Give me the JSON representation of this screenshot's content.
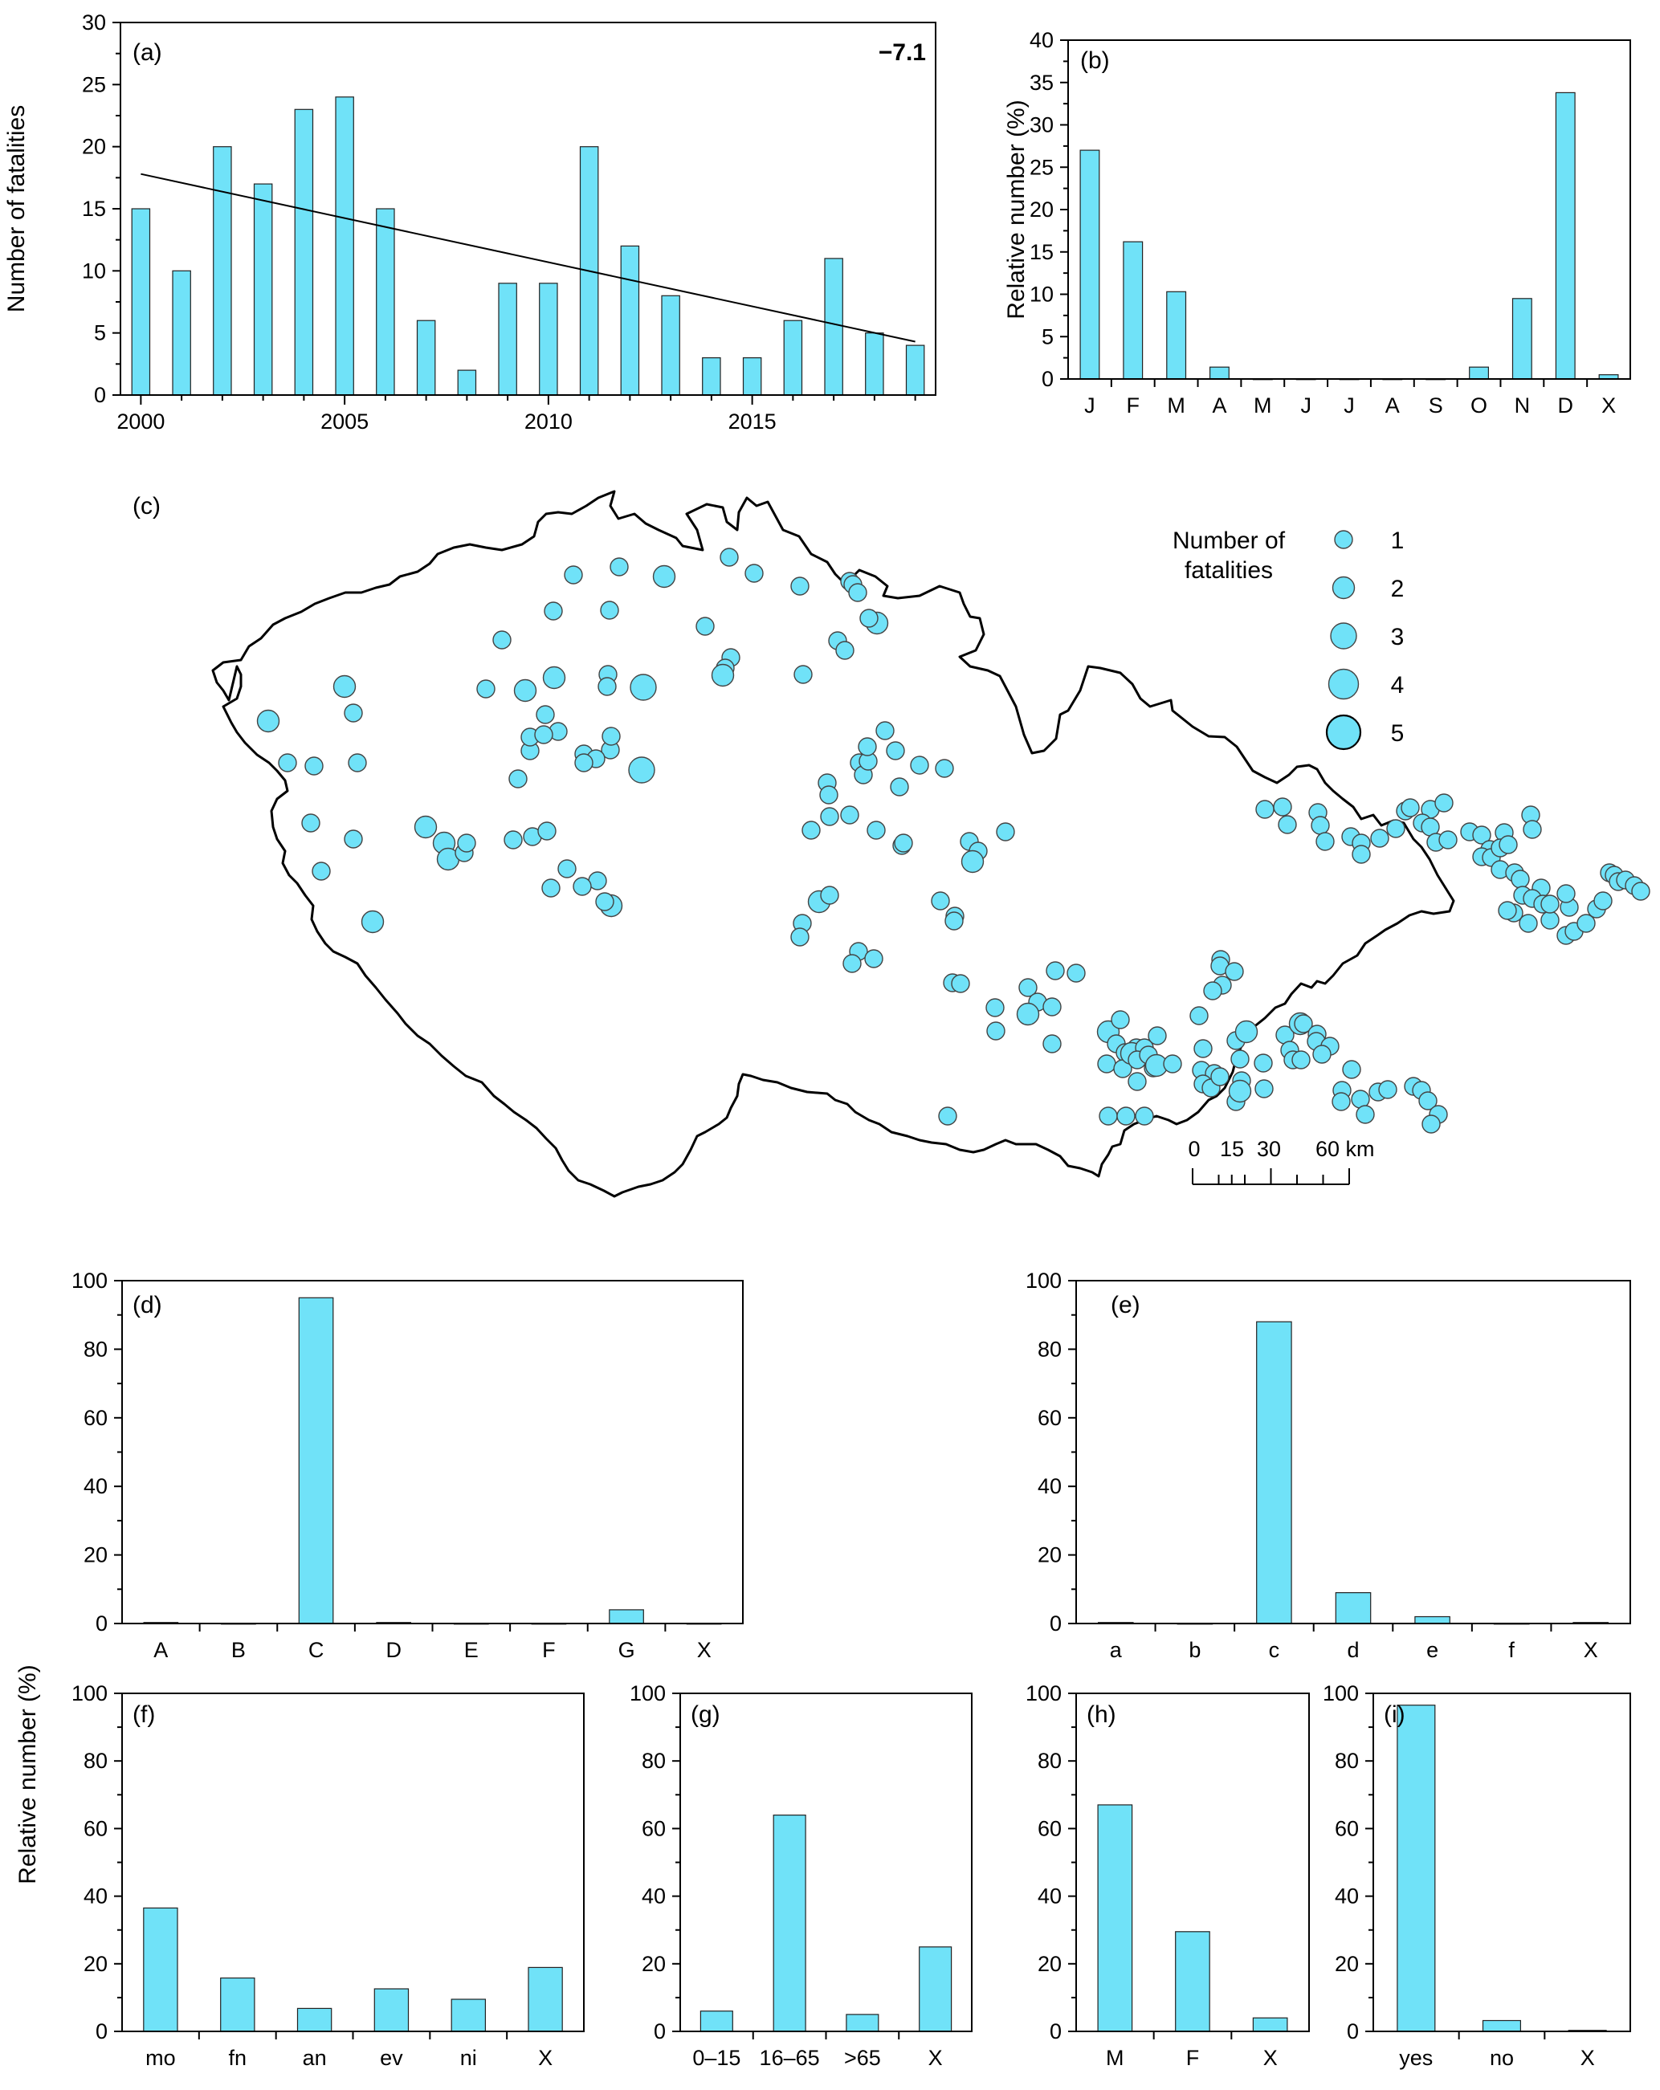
{
  "chart_data": [
    {
      "id": "a",
      "type": "bar",
      "panel_label": "(a)",
      "corner_value": "−7.1",
      "ylabel": "Number of fatalities",
      "xlabel": "",
      "x": [
        2000,
        2001,
        2002,
        2003,
        2004,
        2005,
        2006,
        2007,
        2008,
        2009,
        2010,
        2011,
        2012,
        2013,
        2014,
        2015,
        2016,
        2017,
        2018,
        2019
      ],
      "values": [
        15,
        10,
        20,
        17,
        23,
        24,
        15,
        6,
        2,
        9,
        9,
        20,
        12,
        8,
        3,
        3,
        6,
        11,
        5,
        4
      ],
      "xticks": [
        "2000",
        "2005",
        "2010",
        "2015"
      ],
      "yticks": [
        "0",
        "5",
        "10",
        "15",
        "20",
        "25",
        "30"
      ],
      "ylim": [
        0,
        30
      ],
      "trend": {
        "x": [
          2000,
          2019
        ],
        "y": [
          17.8,
          4.3
        ]
      }
    },
    {
      "id": "b",
      "type": "bar",
      "panel_label": "(b)",
      "ylabel": "Relative number (%)",
      "xlabel": "",
      "categories": [
        "J",
        "F",
        "M",
        "A",
        "M",
        "J",
        "J",
        "A",
        "S",
        "O",
        "N",
        "D",
        "X"
      ],
      "values": [
        27.0,
        16.2,
        10.3,
        1.4,
        0,
        0,
        0,
        0,
        0,
        1.4,
        9.5,
        33.8,
        0.5
      ],
      "yticks": [
        "0",
        "5",
        "10",
        "15",
        "20",
        "25",
        "30",
        "35",
        "40"
      ],
      "ylim": [
        0,
        40
      ]
    },
    {
      "id": "c",
      "type": "scatter",
      "panel_label": "(c)",
      "legend_title_line1": "Number of",
      "legend_title_line2": "fatalities",
      "legend_items": [
        "1",
        "2",
        "3",
        "4",
        "5"
      ],
      "scale_labels": [
        "0",
        "15",
        "30",
        "60 km"
      ]
    },
    {
      "id": "d",
      "type": "bar",
      "panel_label": "(d)",
      "categories": [
        "A",
        "B",
        "C",
        "D",
        "E",
        "F",
        "G",
        "X"
      ],
      "values": [
        0.3,
        0,
        95,
        0.3,
        0,
        0,
        4,
        0
      ],
      "yticks": [
        "0",
        "20",
        "40",
        "60",
        "80",
        "100"
      ],
      "ylim": [
        0,
        100
      ]
    },
    {
      "id": "e",
      "type": "bar",
      "panel_label": "(e)",
      "categories": [
        "a",
        "b",
        "c",
        "d",
        "e",
        "f",
        "X"
      ],
      "values": [
        0.3,
        0,
        88,
        9,
        2,
        0,
        0.3
      ],
      "yticks": [
        "0",
        "20",
        "40",
        "60",
        "80",
        "100"
      ],
      "ylim": [
        0,
        100
      ]
    },
    {
      "id": "f",
      "type": "bar",
      "panel_label": "(f)",
      "categories": [
        "mo",
        "fn",
        "an",
        "ev",
        "ni",
        "X"
      ],
      "values": [
        36.5,
        15.8,
        6.8,
        12.6,
        9.5,
        18.9
      ],
      "yticks": [
        "0",
        "20",
        "40",
        "60",
        "80",
        "100"
      ],
      "ylim": [
        0,
        100
      ]
    },
    {
      "id": "g",
      "type": "bar",
      "panel_label": "(g)",
      "categories": [
        "0–15",
        "16–65",
        ">65",
        "X"
      ],
      "values": [
        6,
        64,
        5,
        25
      ],
      "yticks": [
        "0",
        "20",
        "40",
        "60",
        "80",
        "100"
      ],
      "ylim": [
        0,
        100
      ]
    },
    {
      "id": "h",
      "type": "bar",
      "panel_label": "(h)",
      "categories": [
        "M",
        "F",
        "X"
      ],
      "values": [
        67,
        29.5,
        4
      ],
      "yticks": [
        "0",
        "20",
        "40",
        "60",
        "80",
        "100"
      ],
      "ylim": [
        0,
        100
      ]
    },
    {
      "id": "i",
      "type": "bar",
      "panel_label": "(i)",
      "categories": [
        "yes",
        "no",
        "X"
      ],
      "values": [
        96.5,
        3.2,
        0.3
      ],
      "yticks": [
        "0",
        "20",
        "40",
        "60",
        "80",
        "100"
      ],
      "ylim": [
        0,
        100
      ]
    }
  ],
  "shared_ylabel": "Relative number (%)",
  "colors": {
    "bar": "#70e2f8",
    "edge": "#222222",
    "axis": "#000000"
  }
}
